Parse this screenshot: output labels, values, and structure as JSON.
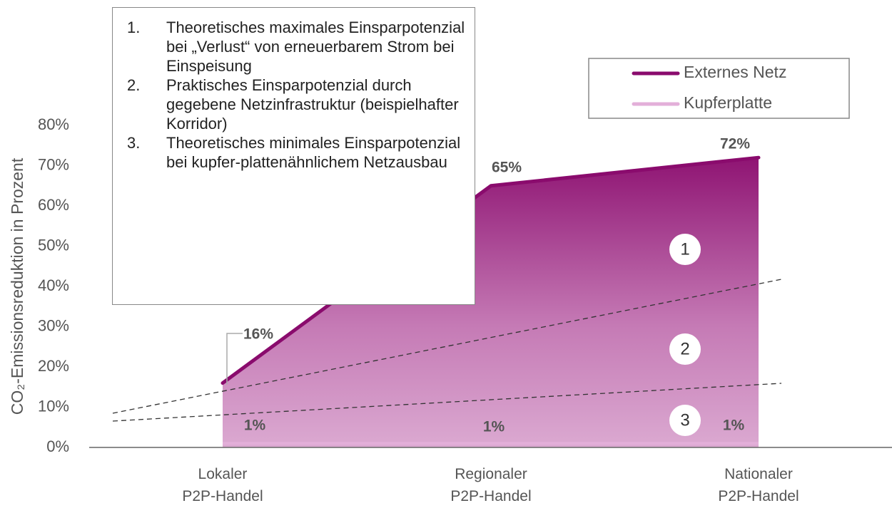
{
  "chart_data": {
    "type": "area",
    "y_axis_label": "CO₂-Emissionsreduktion in Prozent",
    "categories": [
      "Lokaler P2P-Handel",
      "Regionaler P2P-Handel",
      "Nationaler P2P-Handel"
    ],
    "series": [
      {
        "name": "Externes Netz",
        "color": "#8a0b6d",
        "values": [
          16,
          65,
          72
        ],
        "value_labels": [
          "16%",
          "65%",
          "72%"
        ]
      },
      {
        "name": "Kupferplatte",
        "color": "#e3afd9",
        "values": [
          1,
          1,
          1
        ],
        "value_labels": [
          "1%",
          "1%",
          "1%"
        ]
      }
    ],
    "ylim": [
      0,
      80
    ],
    "yticks": [
      {
        "value": 0,
        "label": "0%"
      },
      {
        "value": 10,
        "label": "10%"
      },
      {
        "value": 20,
        "label": "20%"
      },
      {
        "value": 30,
        "label": "30%"
      },
      {
        "value": 40,
        "label": "40%"
      },
      {
        "value": 50,
        "label": "50%"
      },
      {
        "value": 60,
        "label": "60%"
      },
      {
        "value": 70,
        "label": "70%"
      },
      {
        "value": 80,
        "label": "80%"
      }
    ],
    "legend": "top-right",
    "zones": [
      "1",
      "2",
      "3"
    ],
    "annotations": [
      {
        "number": "1.",
        "text": "Theoretisches maximales Einsparpotenzial bei „Verlust“ von erneuerbarem Strom bei Einspeisung"
      },
      {
        "number": "2.",
        "text": "Praktisches Einsparpotenzial durch gegebene Netzinfrastruktur (beispielhafter Korridor)"
      },
      {
        "number": "3.",
        "text": "Theoretisches minimales Einsparpotenzial bei kupfer-plattenähnlichem Netzausbau"
      }
    ]
  }
}
